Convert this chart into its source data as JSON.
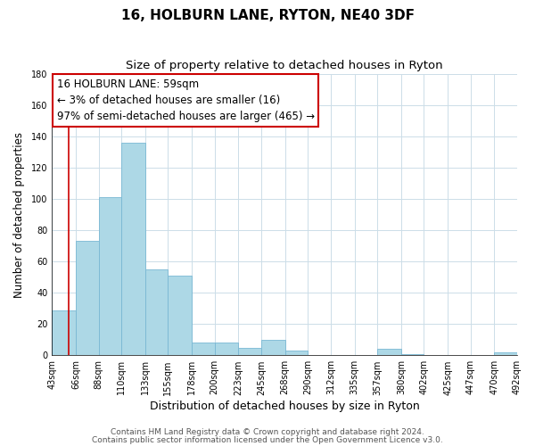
{
  "title": "16, HOLBURN LANE, RYTON, NE40 3DF",
  "subtitle": "Size of property relative to detached houses in Ryton",
  "xlabel": "Distribution of detached houses by size in Ryton",
  "ylabel": "Number of detached properties",
  "bin_edges": [
    43,
    66,
    88,
    110,
    133,
    155,
    178,
    200,
    223,
    245,
    268,
    290,
    312,
    335,
    357,
    380,
    402,
    425,
    447,
    470,
    492
  ],
  "bar_heights": [
    29,
    73,
    101,
    136,
    55,
    51,
    8,
    8,
    5,
    10,
    3,
    0,
    0,
    0,
    4,
    1,
    0,
    0,
    0,
    2
  ],
  "bar_color": "#add8e6",
  "bar_edgecolor": "#7ab8d4",
  "ylim": [
    0,
    180
  ],
  "yticks": [
    0,
    20,
    40,
    60,
    80,
    100,
    120,
    140,
    160,
    180
  ],
  "property_size": 59,
  "red_line_color": "#cc0000",
  "annotation_line1": "16 HOLBURN LANE: 59sqm",
  "annotation_line2": "← 3% of detached houses are smaller (16)",
  "annotation_line3": "97% of semi-detached houses are larger (465) →",
  "annotation_box_color": "#ffffff",
  "annotation_box_edgecolor": "#cc0000",
  "footer_line1": "Contains HM Land Registry data © Crown copyright and database right 2024.",
  "footer_line2": "Contains public sector information licensed under the Open Government Licence v3.0.",
  "background_color": "#ffffff",
  "grid_color": "#ccdde8",
  "title_fontsize": 11,
  "subtitle_fontsize": 9.5,
  "xlabel_fontsize": 9,
  "ylabel_fontsize": 8.5,
  "tick_label_fontsize": 7,
  "annotation_fontsize": 8.5,
  "footer_fontsize": 6.5
}
